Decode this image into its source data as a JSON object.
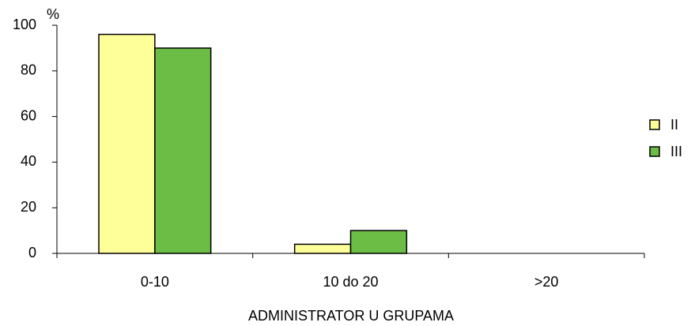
{
  "chart_data": {
    "type": "bar",
    "categories": [
      "0-10",
      "10 do 20",
      ">20"
    ],
    "series": [
      {
        "name": "II",
        "color": "#ffff99",
        "values": [
          96,
          4,
          0
        ]
      },
      {
        "name": "III",
        "color": "#6cbd45",
        "values": [
          90,
          10,
          0
        ]
      }
    ],
    "ylabel": "%",
    "xlabel": "ADMINISTRATOR U GRUPAMA",
    "ylim": [
      0,
      100
    ],
    "yticks": [
      0,
      20,
      40,
      60,
      80,
      100
    ],
    "grid": false,
    "legend": "right"
  }
}
